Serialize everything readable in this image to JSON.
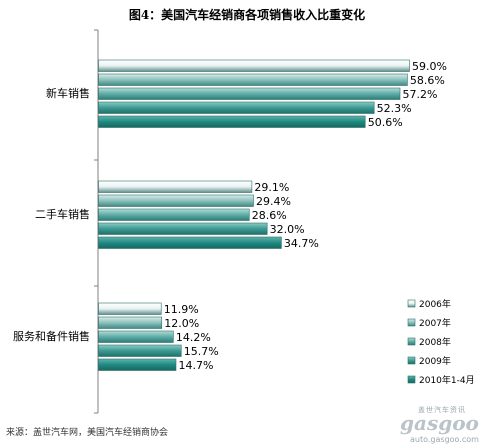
{
  "chart_data": {
    "type": "bar",
    "orientation": "horizontal",
    "title": "图4：美国汽车经销商各项销售收入比重变化",
    "categories": [
      "新车销售",
      "二手车销售",
      "服务和备件销售"
    ],
    "series": [
      {
        "name": "2006年",
        "values": [
          59.0,
          29.1,
          11.9
        ]
      },
      {
        "name": "2007年",
        "values": [
          58.6,
          29.4,
          12.0
        ]
      },
      {
        "name": "2008年",
        "values": [
          57.2,
          28.6,
          14.2
        ]
      },
      {
        "name": "2009年",
        "values": [
          52.3,
          32.0,
          15.7
        ]
      },
      {
        "name": "2010年1-4月",
        "values": [
          50.6,
          34.7,
          14.7
        ]
      }
    ],
    "data_labels": [
      [
        "59.0%",
        "58.6%",
        "57.2%",
        "52.3%",
        "50.6%"
      ],
      [
        "29.1%",
        "29.4%",
        "28.6%",
        "32.0%",
        "34.7%"
      ],
      [
        "11.9%",
        "12.0%",
        "14.2%",
        "15.7%",
        "14.7%"
      ]
    ],
    "xlim": [
      0,
      60
    ],
    "grid": false,
    "legend_position": "right"
  },
  "source": "来源：盖世汽车网，美国汽车经销商协会",
  "watermark": {
    "cn": "盖世汽车资讯",
    "logo": "gasgoo",
    "url": "auto.gasgoo.com"
  }
}
